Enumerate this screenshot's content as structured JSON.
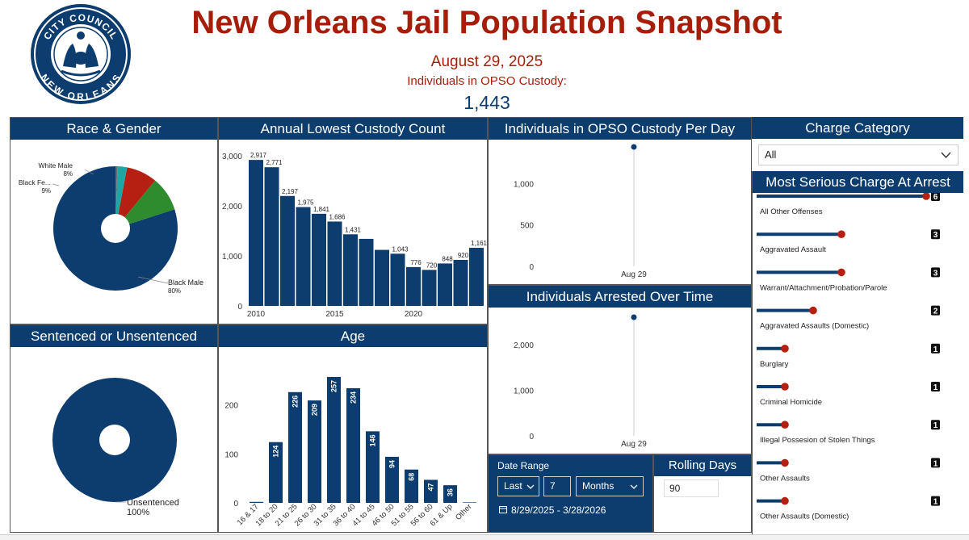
{
  "header": {
    "title": "New Orleans Jail Population Snapshot",
    "date": "August 29, 2025",
    "subtitle": "Individuals in OPSO Custody:",
    "count": "1,443",
    "seal_top": "CITY COUNCIL",
    "seal_bottom": "NEW ORLEANS"
  },
  "colors": {
    "navy": "#0d3c6e",
    "red": "#a61e0a",
    "green": "#2e8b2e",
    "teal": "#20a5a5",
    "darkred": "#b52012"
  },
  "panels": {
    "race": "Race & Gender",
    "annual": "Annual Lowest Custody Count",
    "custody": "Individuals in OPSO Custody Per Day",
    "charge_category": "Charge Category",
    "most_serious": "Most Serious Charge At Arrest",
    "sentenced": "Sentenced or Unsentenced",
    "age": "Age",
    "arrested": "Individuals Arrested Over Time",
    "rolling": "Rolling Days"
  },
  "filters": {
    "charge_category_value": "All",
    "date_range_label": "Date Range",
    "relative": "Last",
    "amount": "7",
    "unit": "Months",
    "date_span": "8/29/2025 - 3/28/2026",
    "rolling_value": "90"
  },
  "chart_data": [
    {
      "name": "race_gender",
      "type": "pie",
      "title": "Race & Gender",
      "slices": [
        {
          "label": "Black Male",
          "pct_label": "80%",
          "value": 80
        },
        {
          "label": "White Male",
          "pct_label": "8%",
          "value": 8
        },
        {
          "label": "Black Fe...",
          "pct_label": "9%",
          "value": 9
        },
        {
          "label": "",
          "pct_label": "",
          "value": 2.5
        },
        {
          "label": "",
          "pct_label": "",
          "value": 0.5
        }
      ]
    },
    {
      "name": "annual_lowest",
      "type": "bar",
      "title": "Annual Lowest Custody Count",
      "x": [
        2010,
        2011,
        2012,
        2013,
        2014,
        2015,
        2016,
        2017,
        2018,
        2019,
        2020,
        2021,
        2022,
        2023,
        2024
      ],
      "values": [
        2917,
        2771,
        2197,
        1975,
        1841,
        1686,
        1431,
        1340,
        1120,
        1043,
        776,
        720,
        848,
        920,
        1161
      ],
      "labels": [
        "2,917",
        "2,771",
        "2,197",
        "1,975",
        "1,841",
        "1,686",
        "1,431",
        "",
        "",
        "1,043",
        "776",
        "720",
        "848",
        "920",
        "1,161"
      ],
      "yticks": [
        "0",
        "1,000",
        "2,000",
        "3,000"
      ],
      "xticks": [
        "2010",
        "2015",
        "2020"
      ],
      "ylim": [
        0,
        3000
      ]
    },
    {
      "name": "custody_per_day",
      "type": "line",
      "title": "Individuals in OPSO Custody Per Day",
      "x": [
        "Aug 29"
      ],
      "values": [
        1443
      ],
      "yticks": [
        "0",
        "500",
        "1,000"
      ],
      "ylim": [
        0,
        1443
      ]
    },
    {
      "name": "arrested_over_time",
      "type": "line",
      "title": "Individuals Arrested Over Time",
      "x": [
        "Aug 29"
      ],
      "values": [
        2600
      ],
      "yticks": [
        "0",
        "1,000",
        "2,000"
      ],
      "ylim": [
        0,
        2600
      ]
    },
    {
      "name": "sentenced",
      "type": "pie",
      "title": "Sentenced or Unsentenced",
      "slices": [
        {
          "label": "Unsentenced",
          "pct_label": "100%",
          "value": 100
        }
      ]
    },
    {
      "name": "age",
      "type": "bar",
      "title": "Age",
      "categories": [
        "16 & 17",
        "18 to 20",
        "21 to 25",
        "26 to 30",
        "31 to 35",
        "36 to 40",
        "41 to 45",
        "46 to 50",
        "51 to 55",
        "56 to 60",
        "61 & Up",
        "Other"
      ],
      "values": [
        2,
        124,
        226,
        209,
        257,
        234,
        146,
        94,
        68,
        47,
        36,
        1
      ],
      "labels": [
        "",
        "124",
        "226",
        "209",
        "257",
        "234",
        "146",
        "94",
        "68",
        "47",
        "36",
        ""
      ],
      "yticks": [
        "0",
        "100",
        "200"
      ],
      "ylim": [
        0,
        280
      ]
    },
    {
      "name": "most_serious_charge",
      "type": "bar",
      "title": "Most Serious Charge At Arrest",
      "categories": [
        "All Other Offenses",
        "Aggravated Assault",
        "Warrant/Attachment/Probation/Parole",
        "Aggravated Assaults (Domestic)",
        "Burglary",
        "Criminal Homicide",
        "Illegal Possesion of Stolen Things",
        "Other Assaults",
        "Other Assaults (Domestic)"
      ],
      "values": [
        6,
        3,
        3,
        2,
        1,
        1,
        1,
        1,
        1
      ],
      "labels": [
        "6",
        "3",
        "3",
        "2",
        "1",
        "1",
        "1",
        "1",
        "1"
      ]
    }
  ]
}
